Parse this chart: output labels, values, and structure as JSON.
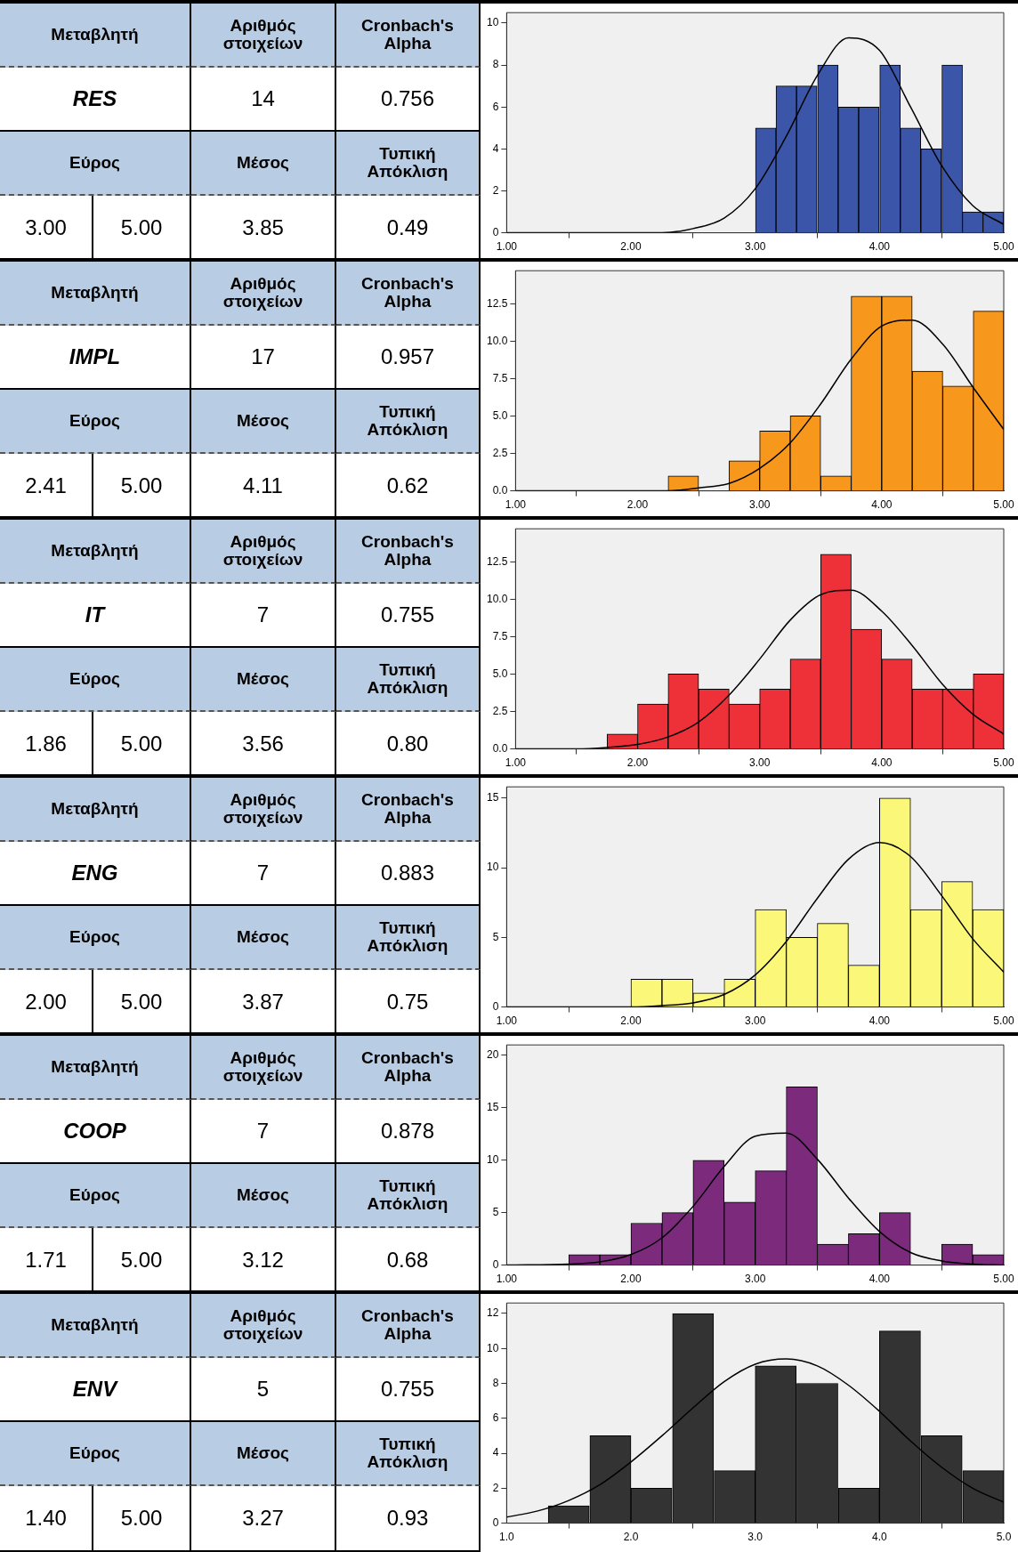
{
  "chart_data": [
    {
      "type": "other",
      "annotations": [
        "Μεταβλητή",
        "Αριθμός στοιχείων",
        "Cronbach's Alpha",
        "RES",
        "14",
        "0.756",
        "Εύρος",
        "Μέσος",
        "Τυπική Απόκλιση",
        "3.00",
        "5.00",
        "3.85",
        "0.49"
      ]
    },
    {
      "type": "histogram",
      "bins": [
        3.0,
        3.17,
        3.33,
        3.5,
        3.67,
        3.83,
        4.0,
        4.17,
        4.33,
        4.5,
        4.67,
        4.83,
        5.0
      ],
      "values": [
        5,
        7,
        7,
        8,
        6,
        6,
        8,
        5,
        4,
        8,
        1,
        1
      ],
      "color": "#3b55a8",
      "xlim": [
        1,
        5
      ],
      "xticks": [
        {
          "value": 1,
          "label": "1.00"
        },
        {
          "value": 2,
          "label": "2.00"
        },
        {
          "value": 3,
          "label": "3.00"
        },
        {
          "value": 4,
          "label": "4.00"
        },
        {
          "value": 5,
          "label": "5.00"
        }
      ],
      "ylim": [
        0,
        10.5
      ],
      "yticks": [
        0,
        2,
        4,
        6,
        8,
        10
      ],
      "grid": false,
      "legend": false,
      "series": [
        {
          "type": "line",
          "color": "#000000",
          "x": [
            1.0,
            1.5,
            2.0,
            2.25,
            2.5,
            2.75,
            3.0,
            3.25,
            3.5,
            3.75,
            4.0,
            4.25,
            4.5,
            4.75,
            5.0
          ],
          "values": [
            0,
            0,
            0,
            0,
            0.2,
            0.7,
            2.1,
            4.6,
            7.5,
            9.3,
            8.7,
            6.0,
            3.2,
            1.3,
            0.4
          ]
        }
      ]
    },
    {
      "type": "other",
      "annotations": [
        "Μεταβλητή",
        "Αριθμός στοιχείων",
        "Cronbach's Alpha",
        "IMPL",
        "17",
        "0.957",
        "Εύρος",
        "Μέσος",
        "Τυπική Απόκλιση",
        "2.41",
        "5.00",
        "4.11",
        "0.62"
      ]
    },
    {
      "type": "histogram",
      "bins": [
        2.25,
        2.5,
        2.75,
        3.0,
        3.25,
        3.5,
        3.75,
        4.0,
        4.25,
        4.5,
        4.75,
        5.0
      ],
      "values": [
        1,
        0,
        2,
        4,
        5,
        1,
        13,
        13,
        8,
        7,
        12
      ],
      "color": "#f7981d",
      "xlim": [
        1,
        5
      ],
      "xticks": [
        {
          "value": 1,
          "label": "1.00"
        },
        {
          "value": 2,
          "label": "2.00"
        },
        {
          "value": 3,
          "label": "3.00"
        },
        {
          "value": 4,
          "label": "4.00"
        },
        {
          "value": 5,
          "label": "5.00"
        }
      ],
      "ylim": [
        0,
        14.7
      ],
      "yticks": [
        {
          "value": 0,
          "label": "0.0"
        },
        {
          "value": 2.5,
          "label": "2.5"
        },
        {
          "value": 5,
          "label": "5.0"
        },
        {
          "value": 7.5,
          "label": "7.5"
        },
        {
          "value": 10,
          "label": "10.0"
        },
        {
          "value": 12.5,
          "label": "12.5"
        }
      ],
      "grid": false,
      "legend": false,
      "series": [
        {
          "type": "line",
          "color": "#000000",
          "x": [
            1.0,
            1.5,
            2.0,
            2.25,
            2.5,
            2.75,
            3.0,
            3.25,
            3.5,
            3.75,
            4.0,
            4.25,
            4.5,
            4.75,
            5.0
          ],
          "values": [
            0,
            0,
            0,
            0,
            0.2,
            0.5,
            1.5,
            3.2,
            5.8,
            8.8,
            11.0,
            11.4,
            9.8,
            6.9,
            4.1
          ]
        }
      ]
    },
    {
      "type": "other",
      "annotations": [
        "Μεταβλητή",
        "Αριθμός στοιχείων",
        "Cronbach's Alpha",
        "IT",
        "7",
        "0.755",
        "Εύρος",
        "Μέσος",
        "Τυπική Απόκλιση",
        "1.86",
        "5.00",
        "3.56",
        "0.80"
      ]
    },
    {
      "type": "histogram",
      "bins": [
        1.75,
        2.0,
        2.25,
        2.5,
        2.75,
        3.0,
        3.25,
        3.5,
        3.75,
        4.0,
        4.25,
        4.5,
        4.75,
        5.0
      ],
      "values": [
        1,
        3,
        5,
        4,
        3,
        4,
        6,
        13,
        8,
        6,
        4,
        4,
        5
      ],
      "color": "#ee3039",
      "xlim": [
        1,
        5
      ],
      "xticks": [
        {
          "value": 1,
          "label": "1.00"
        },
        {
          "value": 2,
          "label": "2.00"
        },
        {
          "value": 3,
          "label": "3.00"
        },
        {
          "value": 4,
          "label": "4.00"
        },
        {
          "value": 5,
          "label": "5.00"
        }
      ],
      "ylim": [
        0,
        14.7
      ],
      "yticks": [
        {
          "value": 0,
          "label": "0.0"
        },
        {
          "value": 2.5,
          "label": "2.5"
        },
        {
          "value": 5,
          "label": "5.0"
        },
        {
          "value": 7.5,
          "label": "7.5"
        },
        {
          "value": 10,
          "label": "10.0"
        },
        {
          "value": 12.5,
          "label": "12.5"
        }
      ],
      "grid": false,
      "legend": false,
      "series": [
        {
          "type": "line",
          "color": "#000000",
          "x": [
            1.0,
            1.5,
            1.75,
            2.0,
            2.25,
            2.5,
            2.75,
            3.0,
            3.25,
            3.5,
            3.75,
            4.0,
            4.25,
            4.5,
            4.75,
            5.0
          ],
          "values": [
            0,
            0,
            0.1,
            0.3,
            0.8,
            1.8,
            3.6,
            6.0,
            8.6,
            10.3,
            10.6,
            9.2,
            6.9,
            4.3,
            2.3,
            1.0
          ]
        }
      ]
    },
    {
      "type": "other",
      "annotations": [
        "Μεταβλητή",
        "Αριθμός στοιχείων",
        "Cronbach's Alpha",
        "ENG",
        "7",
        "0.883",
        "Εύρος",
        "Μέσος",
        "Τυπική Απόκλιση",
        "2.00",
        "5.00",
        "3.87",
        "0.75"
      ]
    },
    {
      "type": "histogram",
      "bins": [
        2.0,
        2.25,
        2.5,
        2.75,
        3.0,
        3.25,
        3.5,
        3.75,
        4.0,
        4.25,
        4.5,
        4.75,
        5.0
      ],
      "values": [
        2,
        2,
        1,
        2,
        7,
        5,
        6,
        3,
        15,
        7,
        9,
        7
      ],
      "color": "#fbf778",
      "xlim": [
        1,
        5
      ],
      "xticks": [
        {
          "value": 1,
          "label": "1.00"
        },
        {
          "value": 2,
          "label": "2.00"
        },
        {
          "value": 3,
          "label": "3.00"
        },
        {
          "value": 4,
          "label": "4.00"
        },
        {
          "value": 5,
          "label": "5.00"
        }
      ],
      "ylim": [
        0,
        15.8
      ],
      "yticks": [
        0,
        5,
        10,
        15
      ],
      "grid": false,
      "legend": false,
      "series": [
        {
          "type": "line",
          "color": "#000000",
          "x": [
            1.0,
            1.5,
            2.0,
            2.25,
            2.5,
            2.75,
            3.0,
            3.25,
            3.5,
            3.75,
            4.0,
            4.25,
            4.5,
            4.75,
            5.0
          ],
          "values": [
            0,
            0,
            0,
            0.1,
            0.3,
            0.9,
            2.3,
            4.7,
            7.8,
            10.6,
            11.8,
            10.8,
            8.0,
            4.9,
            2.5
          ]
        }
      ]
    },
    {
      "type": "other",
      "annotations": [
        "Μεταβλητή",
        "Αριθμός στοιχείων",
        "Cronbach's Alpha",
        "COOP",
        "7",
        "0.878",
        "Εύρος",
        "Μέσος",
        "Τυπική Απόκλιση",
        "1.71",
        "5.00",
        "3.12",
        "0.68"
      ]
    },
    {
      "type": "histogram",
      "bins": [
        1.5,
        1.75,
        2.0,
        2.25,
        2.5,
        2.75,
        3.0,
        3.25,
        3.5,
        3.75,
        4.0,
        4.25,
        4.5,
        4.75,
        5.0
      ],
      "values": [
        1,
        1,
        4,
        5,
        10,
        6,
        9,
        17,
        2,
        3,
        5,
        0,
        2,
        1
      ],
      "color": "#7b2a7c",
      "xlim": [
        1,
        5
      ],
      "xticks": [
        {
          "value": 1,
          "label": "1.00"
        },
        {
          "value": 2,
          "label": "2.00"
        },
        {
          "value": 3,
          "label": "3.00"
        },
        {
          "value": 4,
          "label": "4.00"
        },
        {
          "value": 5,
          "label": "5.00"
        }
      ],
      "ylim": [
        0,
        21
      ],
      "yticks": [
        0,
        5,
        10,
        15,
        20
      ],
      "grid": false,
      "legend": false,
      "series": [
        {
          "type": "line",
          "color": "#000000",
          "x": [
            1.0,
            1.5,
            1.75,
            2.0,
            2.25,
            2.5,
            2.75,
            3.0,
            3.25,
            3.5,
            3.75,
            4.0,
            4.25,
            4.5,
            4.75,
            5.0
          ],
          "values": [
            0,
            0.1,
            0.3,
            1.0,
            2.6,
            5.6,
            9.4,
            12.3,
            12.6,
            10.1,
            6.4,
            3.2,
            1.2,
            0.4,
            0.1,
            0
          ]
        }
      ]
    },
    {
      "type": "other",
      "annotations": [
        "Μεταβλητή",
        "Αριθμός στοιχείων",
        "Cronbach's Alpha",
        "ENV",
        "5",
        "0.755",
        "Εύρος",
        "Μέσος",
        "Τυπική Απόκλιση",
        "1.40",
        "5.00",
        "3.27",
        "0.93"
      ]
    },
    {
      "type": "histogram",
      "bins": [
        1.33,
        1.67,
        2.0,
        2.33,
        2.67,
        3.0,
        3.33,
        3.67,
        4.0,
        4.33,
        4.67,
        5.0
      ],
      "values": [
        1,
        5,
        2,
        12,
        3,
        9,
        8,
        2,
        11,
        5,
        3
      ],
      "color": "#333333",
      "xlim": [
        1,
        5
      ],
      "xticks": [
        {
          "value": 1,
          "label": "1.0"
        },
        {
          "value": 2,
          "label": "2.0"
        },
        {
          "value": 3,
          "label": "3.0"
        },
        {
          "value": 4,
          "label": "4.0"
        },
        {
          "value": 5,
          "label": "5.0"
        }
      ],
      "ylim": [
        0,
        12.6
      ],
      "yticks": [
        0,
        2,
        4,
        6,
        8,
        10,
        12
      ],
      "grid": false,
      "legend": false,
      "series": [
        {
          "type": "line",
          "color": "#000000",
          "x": [
            1.0,
            1.25,
            1.5,
            1.75,
            2.0,
            2.25,
            2.5,
            2.75,
            3.0,
            3.25,
            3.5,
            3.75,
            4.0,
            4.25,
            4.5,
            4.75,
            5.0
          ],
          "values": [
            0.35,
            0.7,
            1.3,
            2.2,
            3.5,
            5.0,
            6.6,
            8.1,
            9.1,
            9.4,
            9.0,
            7.9,
            6.4,
            4.7,
            3.2,
            2.0,
            1.2
          ]
        }
      ]
    }
  ]
}
